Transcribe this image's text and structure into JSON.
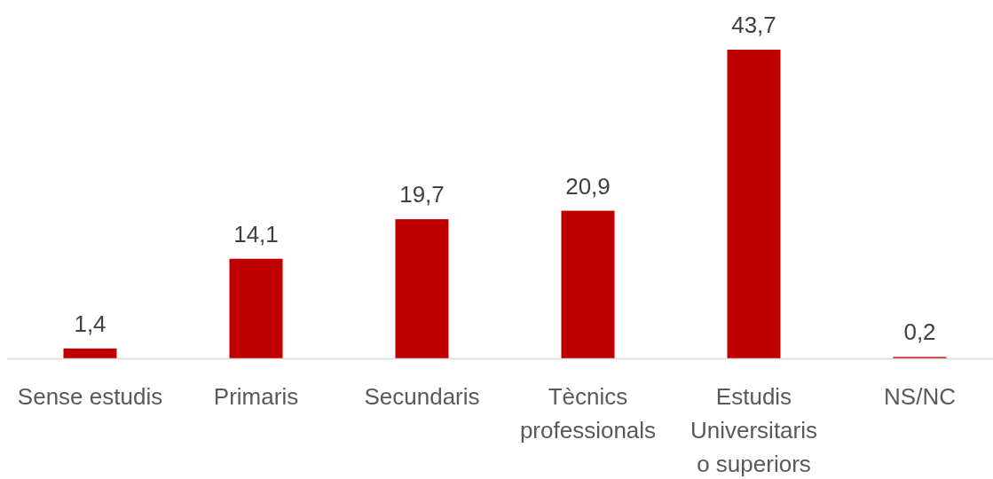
{
  "chart_data": {
    "type": "bar",
    "categories": [
      "Sense estudis",
      "Primaris",
      "Secundaris",
      "Tècnics professionals",
      "Estudis Universitaris o superiors",
      "NS/NC"
    ],
    "values": [
      1.4,
      14.1,
      19.7,
      20.9,
      43.7,
      0.2
    ],
    "value_labels": [
      "1,4",
      "14,1",
      "19,7",
      "20,9",
      "43,7",
      "0,2"
    ],
    "color": "#c00000"
  }
}
